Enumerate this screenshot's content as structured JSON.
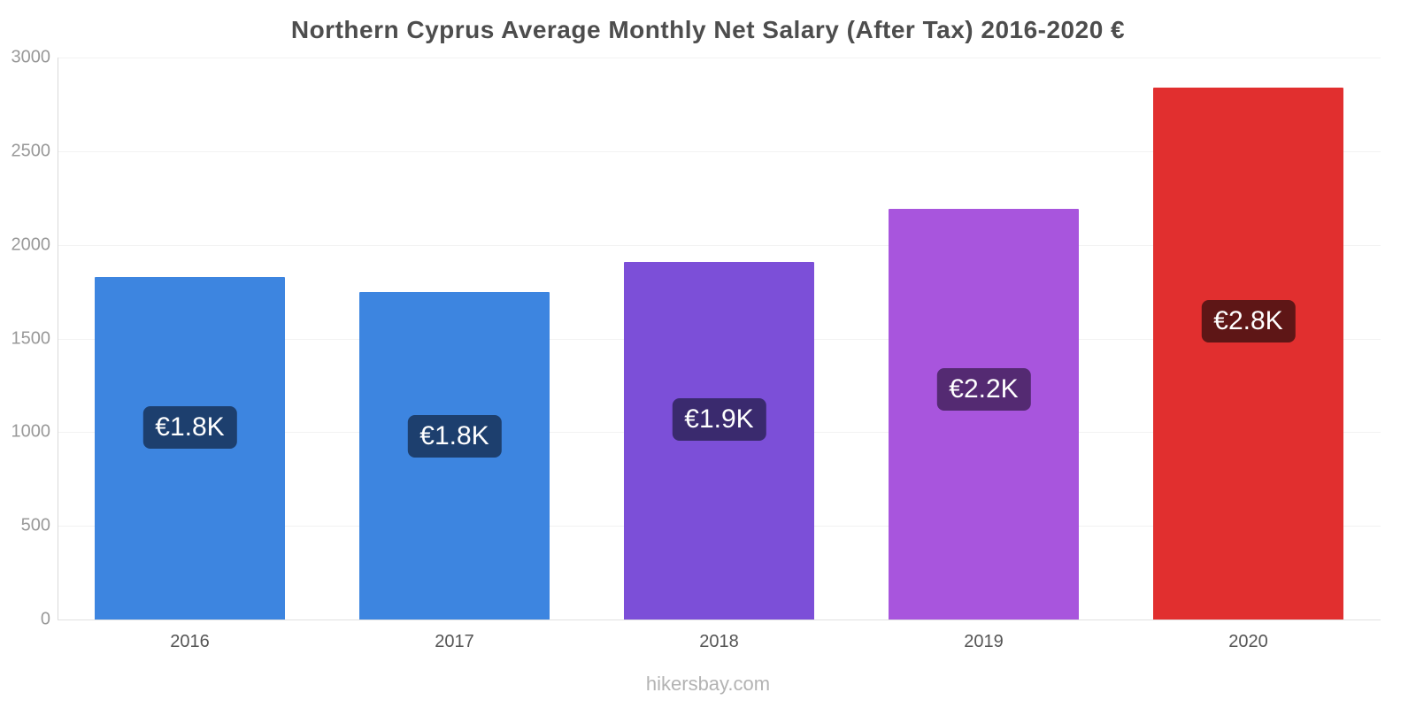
{
  "page": {
    "title": "Northern Cyprus Average Monthly Net Salary (After Tax) 2016-2020 €",
    "watermark": "hikersbay.com"
  },
  "chart_data": {
    "type": "bar",
    "title": "Northern Cyprus Average Monthly Net Salary (After Tax) 2016-2020 €",
    "categories": [
      "2016",
      "2017",
      "2018",
      "2019",
      "2020"
    ],
    "values": [
      1830,
      1750,
      1910,
      2190,
      2840
    ],
    "data_labels": [
      "€1.8K",
      "€1.8K",
      "€1.9K",
      "€2.2K",
      "€2.8K"
    ],
    "bar_colors": [
      "#3d85e0",
      "#3d85e0",
      "#7c4fd8",
      "#a855dd",
      "#e12f2f"
    ],
    "label_bg_colors": [
      "#1d3f6e",
      "#1d3f6e",
      "#3a2a6e",
      "#542a72",
      "#5e1616"
    ],
    "xlabel": "",
    "ylabel": "",
    "ylim": [
      0,
      3000
    ],
    "yticks": [
      0,
      500,
      1000,
      1500,
      2000,
      2500,
      3000
    ],
    "grid": true,
    "legend": false,
    "currency": "€"
  }
}
